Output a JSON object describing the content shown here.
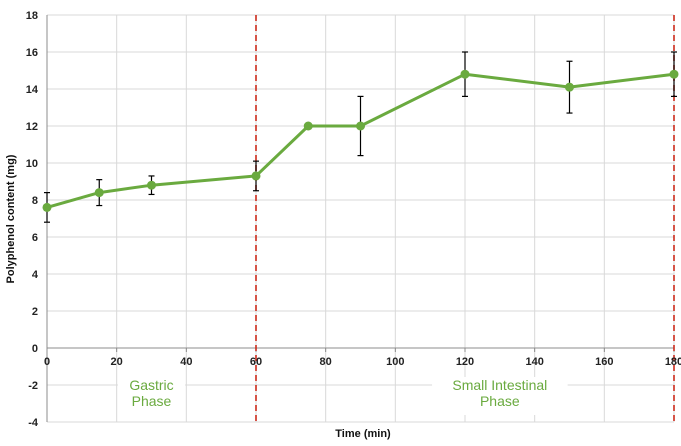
{
  "chart_data": {
    "type": "line",
    "xlabel": "Time (min)",
    "ylabel": "Polyphenol content (mg)",
    "xlim": [
      0,
      180
    ],
    "ylim": [
      -4,
      18
    ],
    "x_ticks": [
      "0",
      "20",
      "40",
      "60",
      "80",
      "100",
      "120",
      "140",
      "160",
      "180"
    ],
    "y_ticks": [
      "-4",
      "-2",
      "0",
      "2",
      "4",
      "6",
      "8",
      "10",
      "12",
      "14",
      "16",
      "18"
    ],
    "grid": "vertical and horizontal gridlines",
    "series": [
      {
        "x": [
          0,
          15,
          30,
          60,
          75,
          90,
          120,
          150,
          180
        ],
        "y": [
          7.6,
          8.4,
          8.8,
          9.3,
          12.0,
          12.0,
          14.8,
          14.1,
          14.8
        ],
        "error": [
          0.8,
          0.7,
          0.5,
          0.8,
          0.0,
          1.6,
          1.2,
          1.4,
          1.2
        ]
      }
    ],
    "phase_lines": [
      60,
      180
    ],
    "annotations": [
      {
        "lines": [
          "Gastric",
          "Phase"
        ],
        "x": 30
      },
      {
        "lines": [
          "Small Intestinal",
          "Phase"
        ],
        "x": 130
      }
    ],
    "colors": {
      "line": "#6aaa3f",
      "marker": "#6aaa3f",
      "error_bar": "#000000",
      "phase_line": "#cc2a1a",
      "grid": "#d9d9d9",
      "axis": "#8c8c8c",
      "annotation": "#6aaa3f"
    }
  }
}
